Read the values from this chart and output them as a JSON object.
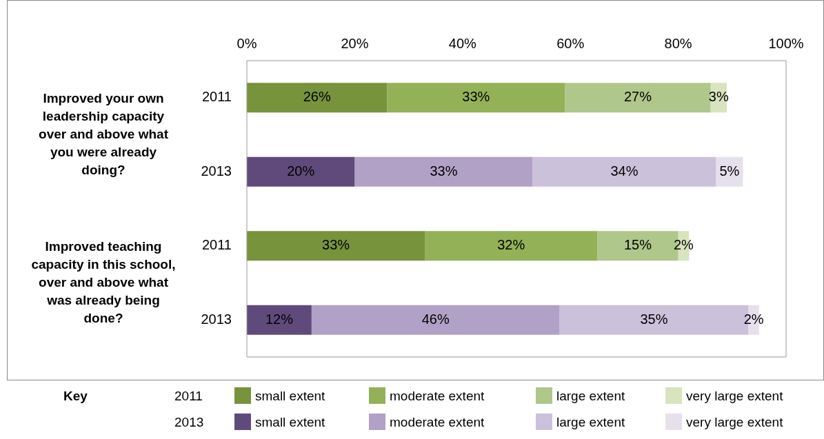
{
  "chart_data": {
    "type": "bar",
    "orientation": "horizontal",
    "stacked": true,
    "categories": [
      "2011",
      "2013",
      "2011",
      "2013"
    ],
    "series": [
      {
        "name": "small extent",
        "colors": [
          "#77933c",
          "#604a7b",
          "#77933c",
          "#604a7b"
        ],
        "values": [
          26,
          20,
          33,
          12
        ],
        "value_labels": [
          "26%",
          "20%",
          "33%",
          "12%"
        ]
      },
      {
        "name": "moderate extent",
        "colors": [
          "#93b156",
          "#b2a1c7",
          "#93b156",
          "#b2a1c7"
        ],
        "values": [
          33,
          33,
          32,
          46
        ],
        "value_labels": [
          "33%",
          "33%",
          "32%",
          "46%"
        ]
      },
      {
        "name": "large extent",
        "colors": [
          "#afc78a",
          "#ccc1da",
          "#afc78a",
          "#ccc1da"
        ],
        "values": [
          27,
          34,
          15,
          35
        ],
        "value_labels": [
          "27%",
          "34%",
          "15%",
          "35%"
        ]
      },
      {
        "name": "very large extent",
        "colors": [
          "#d7e4bd",
          "#e5e0ec",
          "#d7e4bd",
          "#e5e0ec"
        ],
        "values": [
          3,
          5,
          2,
          2
        ],
        "value_labels": [
          "3%",
          "5%",
          "2%",
          "2%"
        ]
      }
    ],
    "xlim": [
      0,
      100
    ],
    "xticks": [
      {
        "value": 0,
        "label": "0%"
      },
      {
        "value": 20,
        "label": "20%"
      },
      {
        "value": 40,
        "label": "40%"
      },
      {
        "value": 60,
        "label": "60%"
      },
      {
        "value": 80,
        "label": "80%"
      },
      {
        "value": 100,
        "label": "100%"
      }
    ],
    "annotations": [
      "Improved your own leadership capacity over and above what you were already doing?",
      "Improved teaching capacity in this school, over and above what was already being done?"
    ],
    "legend": "bottom",
    "legend_title": "Key",
    "grid": false
  }
}
